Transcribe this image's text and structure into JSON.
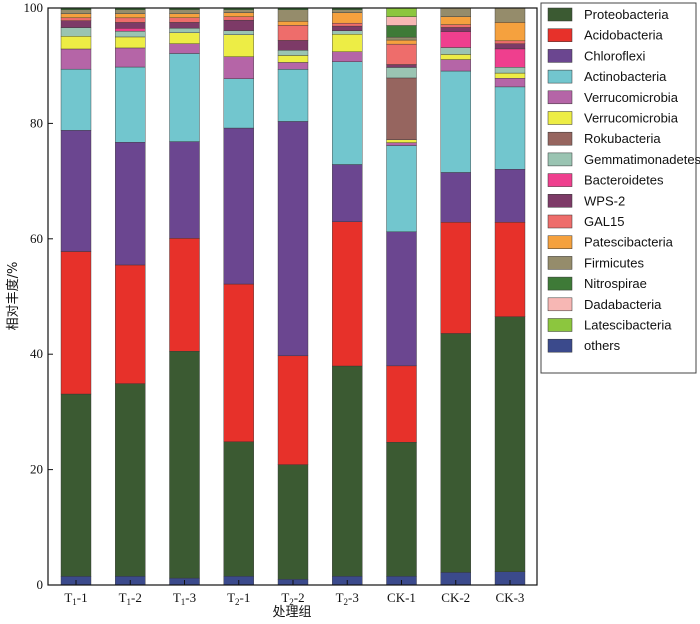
{
  "chart_data": {
    "type": "bar",
    "stacked": true,
    "xlabel": "处理组",
    "ylabel": "相对丰度/%",
    "ylim": [
      0,
      100
    ],
    "yticks": [
      "0",
      "20",
      "40",
      "60",
      "80",
      "100"
    ],
    "grid": false,
    "legend_position": "right",
    "categories": [
      {
        "base": "T",
        "sub": "1",
        "rest": "-1"
      },
      {
        "base": "T",
        "sub": "1",
        "rest": "-2"
      },
      {
        "base": "T",
        "sub": "1",
        "rest": "-3"
      },
      {
        "base": "T",
        "sub": "2",
        "rest": "-1"
      },
      {
        "base": "T",
        "sub": "2",
        "rest": "-2"
      },
      {
        "base": "T",
        "sub": "2",
        "rest": "-3"
      },
      {
        "base": "CK-1",
        "sub": "",
        "rest": ""
      },
      {
        "base": "CK-2",
        "sub": "",
        "rest": ""
      },
      {
        "base": "CK-3",
        "sub": "",
        "rest": ""
      }
    ],
    "series": [
      {
        "name": "others",
        "color": "#3b4a8c",
        "values": [
          1.5,
          1.5,
          1.2,
          1.5,
          1.0,
          1.5,
          1.5,
          2.2,
          2.3
        ]
      },
      {
        "name": "Proteobacteria",
        "color": "#3b5a32",
        "values": [
          31.6,
          33.3,
          39.4,
          23.2,
          19.8,
          36.0,
          23.0,
          41.7,
          44.3
        ]
      },
      {
        "name": "Acidobacteria",
        "color": "#e7312a",
        "values": [
          24.7,
          20.5,
          19.6,
          27.2,
          18.8,
          24.7,
          13.1,
          19.4,
          16.4
        ]
      },
      {
        "name": "Chloroflexi",
        "color": "#6b4690",
        "values": [
          21.0,
          21.2,
          16.8,
          26.9,
          40.5,
          9.8,
          23.0,
          8.7,
          9.2
        ]
      },
      {
        "name": "Actinobacteria",
        "color": "#72c6ce",
        "values": [
          10.6,
          13.0,
          15.3,
          8.5,
          9.0,
          17.6,
          14.8,
          17.7,
          14.3
        ]
      },
      {
        "name": "Verrucomicrobia",
        "color": "#b565a7",
        "values": [
          3.5,
          3.3,
          1.7,
          3.8,
          1.2,
          1.7,
          0.5,
          2.0,
          1.5
        ]
      },
      {
        "name": "Verrucomicrobia",
        "color": "#eded45",
        "values": [
          2.2,
          1.9,
          1.9,
          3.8,
          1.2,
          3.0,
          0.5,
          0.9,
          0.9
        ]
      },
      {
        "name": "Rokubacteria",
        "color": "#96655f",
        "values": [
          0.0,
          0.0,
          0.0,
          0.0,
          0.0,
          0.0,
          10.6,
          0.0,
          0.0
        ]
      },
      {
        "name": "Gemmatimonadetes",
        "color": "#9ac4b2",
        "values": [
          1.5,
          1.0,
          0.8,
          0.7,
          0.9,
          0.6,
          1.8,
          1.2,
          1.0
        ]
      },
      {
        "name": "Bacteroidetes",
        "color": "#ef3f8e",
        "values": [
          0.0,
          0.5,
          0.0,
          0.0,
          0.0,
          0.0,
          0.0,
          2.8,
          3.2
        ]
      },
      {
        "name": "WPS-2",
        "color": "#7d3a67",
        "values": [
          1.2,
          1.0,
          1.0,
          1.8,
          1.7,
          0.8,
          0.5,
          0.7,
          0.9
        ]
      },
      {
        "name": "GAL15",
        "color": "#ee6d6b",
        "values": [
          0.5,
          0.8,
          0.8,
          0.6,
          2.6,
          0.5,
          3.5,
          0.5,
          0.5
        ]
      },
      {
        "name": "Patescibacteria",
        "color": "#f5a13e",
        "values": [
          0.7,
          0.7,
          0.7,
          0.7,
          0.7,
          1.8,
          0.7,
          1.4,
          3.2
        ]
      },
      {
        "name": "Firmicutes",
        "color": "#958c6b",
        "values": [
          0.7,
          0.7,
          0.7,
          0.5,
          2.0,
          0.5,
          0.5,
          1.5,
          2.5
        ]
      },
      {
        "name": "Nitrospirae",
        "color": "#3e7a37",
        "values": [
          0.3,
          0.3,
          0.3,
          0.3,
          0.3,
          0.3,
          2.0,
          0.0,
          0.0
        ]
      },
      {
        "name": "Dadabacteria",
        "color": "#f7b7b4",
        "values": [
          0.0,
          0.0,
          0.0,
          0.0,
          0.0,
          0.0,
          1.5,
          0.0,
          0.0
        ]
      },
      {
        "name": "Latescibacteria",
        "color": "#8cc63e",
        "values": [
          0.0,
          0.0,
          0.0,
          0.0,
          0.0,
          0.0,
          1.5,
          0.0,
          0.0
        ]
      }
    ],
    "legend": [
      {
        "name": "Proteobacteria",
        "color": "#3b5a32"
      },
      {
        "name": "Acidobacteria",
        "color": "#e7312a"
      },
      {
        "name": "Chloroflexi",
        "color": "#6b4690"
      },
      {
        "name": "Actinobacteria",
        "color": "#72c6ce"
      },
      {
        "name": "Verrucomicrobia",
        "color": "#b565a7"
      },
      {
        "name": "Verrucomicrobia",
        "color": "#eded45"
      },
      {
        "name": "Rokubacteria",
        "color": "#96655f"
      },
      {
        "name": "Gemmatimonadetes",
        "color": "#9ac4b2"
      },
      {
        "name": "Bacteroidetes",
        "color": "#ef3f8e"
      },
      {
        "name": "WPS-2",
        "color": "#7d3a67"
      },
      {
        "name": "GAL15",
        "color": "#ee6d6b"
      },
      {
        "name": "Patescibacteria",
        "color": "#f5a13e"
      },
      {
        "name": "Firmicutes",
        "color": "#958c6b"
      },
      {
        "name": "Nitrospirae",
        "color": "#3e7a37"
      },
      {
        "name": "Dadabacteria",
        "color": "#f7b7b4"
      },
      {
        "name": "Latescibacteria",
        "color": "#8cc63e"
      },
      {
        "name": "others",
        "color": "#3b4a8c"
      }
    ]
  }
}
